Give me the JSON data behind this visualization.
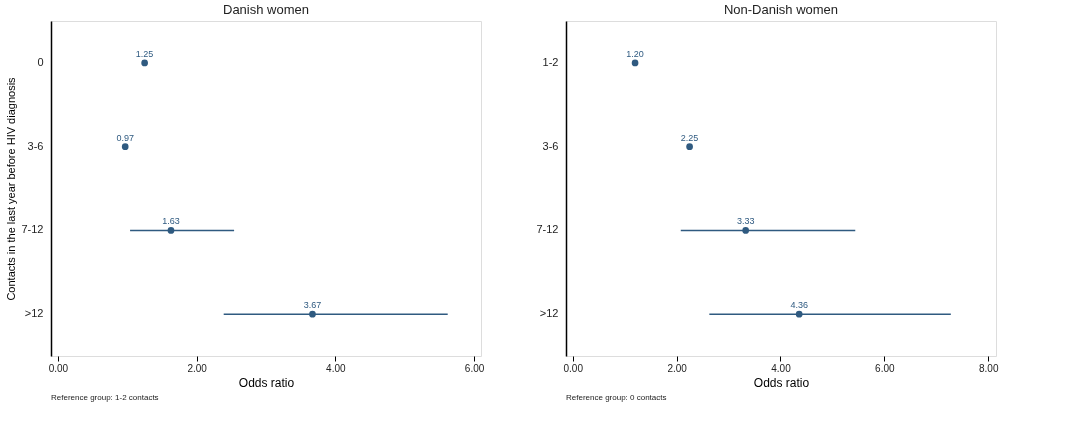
{
  "chart_data": [
    {
      "type": "scatter",
      "orientation": "horizontal",
      "title": "Danish women",
      "xlabel": "Odds ratio",
      "ylabel": "Contacts in the last year before HIV diagnosis",
      "categories": [
        "0",
        "3-6",
        "7-12",
        ">12"
      ],
      "series": [
        {
          "color": "#2f5a80",
          "values": [
            1.25,
            0.97,
            1.63,
            3.67
          ],
          "errors": [
            null,
            null,
            [
              1.04,
              2.54
            ],
            [
              2.39,
              5.62
            ]
          ],
          "value_labels": [
            "1.25",
            "0.97",
            "1.63",
            "3.67"
          ]
        }
      ],
      "xlim": [
        -0.1,
        6.1
      ],
      "xticks": [
        {
          "value": 0,
          "label": "0.00"
        },
        {
          "value": 2,
          "label": "2.00"
        },
        {
          "value": 4,
          "label": "4.00"
        },
        {
          "value": 6,
          "label": "6.00"
        }
      ],
      "marker": "circle",
      "annotations": [
        "Reference group: 1-2 contacts"
      ]
    },
    {
      "type": "scatter",
      "orientation": "horizontal",
      "title": "Non-Danish women",
      "xlabel": "Odds ratio",
      "categories": [
        "1-2",
        "3-6",
        "7-12",
        ">12"
      ],
      "series": [
        {
          "color": "#2f5a80",
          "values": [
            1.2,
            2.25,
            3.33,
            4.36
          ],
          "errors": [
            null,
            null,
            [
              2.08,
              5.44
            ],
            [
              2.63,
              7.28
            ]
          ],
          "value_labels": [
            "1.20",
            "2.25",
            "3.33",
            "4.36"
          ]
        }
      ],
      "xlim": [
        -0.13,
        8.15
      ],
      "xticks": [
        {
          "value": 0,
          "label": "0.00"
        },
        {
          "value": 2,
          "label": "2.00"
        },
        {
          "value": 4,
          "label": "4.00"
        },
        {
          "value": 6,
          "label": "6.00"
        },
        {
          "value": 8,
          "label": "8.00"
        }
      ],
      "marker": "circle",
      "annotations": [
        "Reference group: 0 contacts"
      ]
    }
  ]
}
